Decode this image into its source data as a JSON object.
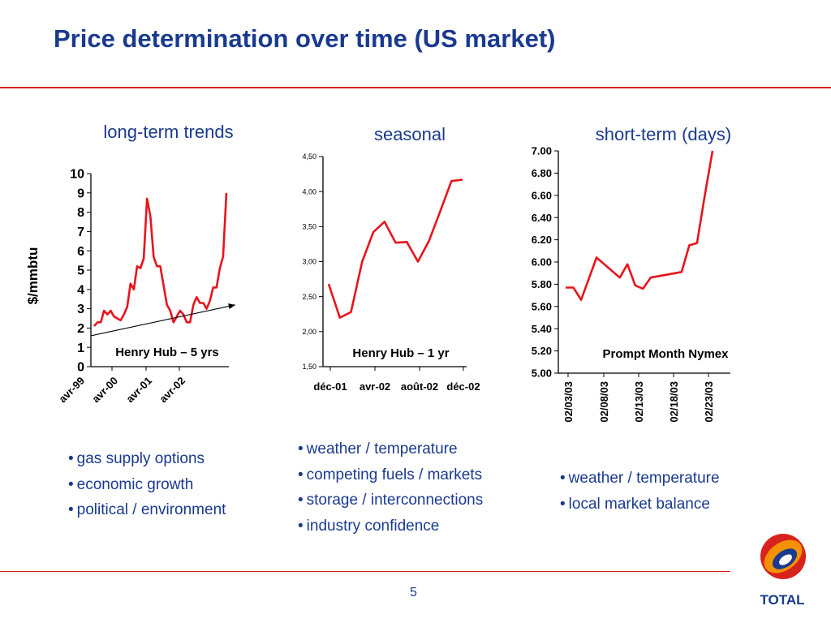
{
  "title": "Price determination over time  (US market)",
  "page_number": "5",
  "panels": [
    {
      "heading": "long-term trends",
      "bullets": [
        "gas supply options",
        "economic growth",
        "political / environment"
      ]
    },
    {
      "heading": "seasonal",
      "bullets": [
        "weather / temperature",
        "competing fuels / markets",
        "storage / interconnections",
        "industry confidence"
      ]
    },
    {
      "heading": "short-term (days)",
      "bullets": [
        "weather / temperature",
        "local market balance"
      ]
    }
  ],
  "logo": {
    "name": "TOTAL",
    "colors": [
      "#d8231c",
      "#f39200",
      "#1a3a8f"
    ]
  },
  "chart_data": [
    {
      "type": "line",
      "ylabel": "$/mmbtu",
      "ylim": [
        0,
        10
      ],
      "y_ticks": [
        "0",
        "1",
        "2",
        "3",
        "4",
        "5",
        "6",
        "7",
        "8",
        "9",
        "10"
      ],
      "x_tick_labels": [
        "avr-99",
        "avr-00",
        "avr-01",
        "avr-02"
      ],
      "annotation": "Henry Hub – 5 yrs",
      "line_color": "#e8141c",
      "trend_arrow": {
        "from": [
          0,
          1.6
        ],
        "to": [
          1,
          3.2
        ]
      },
      "series": [
        {
          "values": [
            2.1,
            2.3,
            2.3,
            2.9,
            2.7,
            2.9,
            2.6,
            2.5,
            2.4,
            2.7,
            3.1,
            4.3,
            4.0,
            5.2,
            5.1,
            5.6,
            8.7,
            7.8,
            5.7,
            5.2,
            5.2,
            4.2,
            3.2,
            2.9,
            2.3,
            2.6,
            2.9,
            2.7,
            2.3,
            2.3,
            3.2,
            3.6,
            3.3,
            3.3,
            3.0,
            3.4,
            4.1,
            4.1,
            5.1,
            5.7,
            9.0
          ]
        }
      ]
    },
    {
      "type": "line",
      "ylim": [
        1.5,
        4.5
      ],
      "y_ticks": [
        "1,50",
        "2,00",
        "2,50",
        "3,00",
        "3,50",
        "4,00",
        "4,50"
      ],
      "x_tick_labels": [
        "déc-01",
        "avr-02",
        "août-02",
        "déc-02"
      ],
      "annotation": "Henry Hub – 1 yr",
      "line_color": "#e8141c",
      "series": [
        {
          "values": [
            2.68,
            2.2,
            2.28,
            3.0,
            3.42,
            3.57,
            3.27,
            3.28,
            3.0,
            3.3,
            3.72,
            4.15,
            4.17
          ]
        }
      ]
    },
    {
      "type": "line",
      "ylim": [
        5.0,
        7.0
      ],
      "y_ticks": [
        "5.00",
        "5.20",
        "5.40",
        "5.60",
        "5.80",
        "6.00",
        "6.20",
        "6.40",
        "6.60",
        "6.80",
        "7.00"
      ],
      "x_tick_labels": [
        "02/03/03",
        "02/08/03",
        "02/13/03",
        "02/18/03",
        "02/23/03"
      ],
      "annotation": "Prompt Month Nymex",
      "line_color": "#e8141c",
      "series": [
        {
          "x": [
            "02/03/03",
            "02/04/03",
            "02/05/03",
            "02/07/03",
            "02/10/03",
            "02/11/03",
            "02/12/03",
            "02/13/03",
            "02/14/03",
            "02/18/03",
            "02/19/03",
            "02/20/03",
            "02/21/03",
            "02/22/03"
          ],
          "values": [
            5.77,
            5.77,
            5.66,
            6.04,
            5.86,
            5.98,
            5.79,
            5.76,
            5.86,
            5.91,
            6.15,
            6.17,
            6.6,
            7.0
          ]
        }
      ]
    }
  ]
}
